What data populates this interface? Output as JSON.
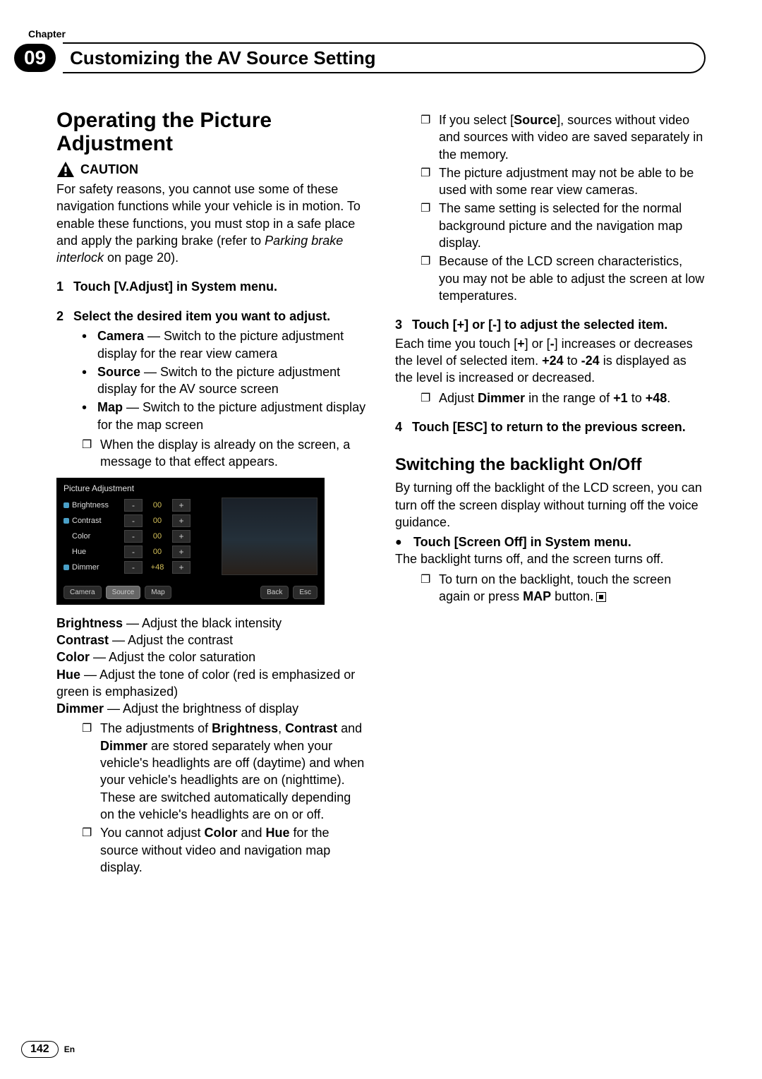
{
  "header": {
    "chapter_label": "Chapter",
    "chapter_number": "09",
    "chapter_title": "Customizing the AV Source Setting"
  },
  "left": {
    "heading": "Operating the Picture Adjustment",
    "caution_label": "CAUTION",
    "caution_text_1": "For safety reasons, you cannot use some of these navigation functions while your vehicle is in motion. To enable these functions, you must stop in a safe place and apply the parking brake (refer to ",
    "caution_text_italic": "Parking brake interlock",
    "caution_text_2": " on page 20).",
    "step1": "Touch [V.Adjust] in System menu.",
    "step2": "Select the desired item you want to adjust.",
    "bullets2": {
      "camera_label": "Camera",
      "camera_text": " — Switch to the picture adjustment display for the rear view camera",
      "source_label": "Source",
      "source_text": " — Switch to the picture adjustment display for the AV source screen",
      "map_label": "Map",
      "map_text": " — Switch to the picture adjustment display for the map screen"
    },
    "note2": "When the display is already on the screen, a message to that effect appears.",
    "screen": {
      "title": "Picture Adjustment",
      "rows": [
        {
          "dot": true,
          "label": "Brightness",
          "value": "00"
        },
        {
          "dot": true,
          "label": "Contrast",
          "value": "00"
        },
        {
          "dot": false,
          "label": "Color",
          "value": "00"
        },
        {
          "dot": false,
          "label": "Hue",
          "value": "00"
        },
        {
          "dot": true,
          "label": "Dimmer",
          "value": "+48"
        }
      ],
      "minus": "-",
      "plus": "+",
      "tabs": {
        "camera": "Camera",
        "source": "Source",
        "map": "Map",
        "back": "Back",
        "esc": "Esc"
      },
      "colors": {
        "bg": "#000000",
        "text": "#dddddd",
        "value": "#d4c05a",
        "dot": "#4aa0c8",
        "btn_bg": "#2a2a2a",
        "btn_border": "#444444"
      }
    },
    "defs": {
      "brightness_label": "Brightness",
      "brightness_text": " — Adjust the black intensity",
      "contrast_label": "Contrast",
      "contrast_text": " — Adjust the contrast",
      "color_label": "Color",
      "color_text": " — Adjust the color saturation",
      "hue_label": "Hue",
      "hue_text": " — Adjust the tone of color (red is emphasized or green is emphasized)",
      "dimmer_label": "Dimmer",
      "dimmer_text": " — Adjust the brightness of display"
    },
    "defs_notes": {
      "n1a": "The adjustments of ",
      "n1b": "Brightness",
      "n1c": ", ",
      "n1d": "Contrast",
      "n1e": " and ",
      "n1f": "Dimmer",
      "n1g": " are stored separately when your vehicle's headlights are off (daytime) and when your vehicle's headlights are on (nighttime). These are switched automatically depending on the vehicle's headlights are on or off.",
      "n2a": "You cannot adjust ",
      "n2b": "Color",
      "n2c": " and ",
      "n2d": "Hue",
      "n2e": " for the source without video and navigation map display."
    }
  },
  "right": {
    "notes_top": {
      "n1a": "If you select [",
      "n1b": "Source",
      "n1c": "], sources without video and sources with video are saved separately in the memory.",
      "n2": "The picture adjustment may not be able to be used with some rear view cameras.",
      "n3": "The same setting is selected for the normal background picture and the navigation map display.",
      "n4": "Because of the LCD screen characteristics, you may not be able to adjust the screen at low temperatures."
    },
    "step3": "Touch [+] or [-] to adjust the selected item.",
    "step3_text_a": "Each time you touch [",
    "step3_text_b": "+",
    "step3_text_c": "] or [",
    "step3_text_d": "-",
    "step3_text_e": "] increases or decreases the level of selected item. ",
    "step3_text_f": "+24",
    "step3_text_g": " to ",
    "step3_text_h": "-24",
    "step3_text_i": " is displayed as the level is increased or decreased.",
    "step3_note_a": "Adjust ",
    "step3_note_b": "Dimmer",
    "step3_note_c": " in the range of ",
    "step3_note_d": "+1",
    "step3_note_e": " to ",
    "step3_note_f": "+48",
    "step3_note_g": ".",
    "step4": "Touch [ESC] to return to the previous screen.",
    "h2": "Switching the backlight On/Off",
    "h2_text": "By turning off the backlight of the LCD screen, you can turn off the screen display without turning off the voice guidance.",
    "h2_bullet": "Touch [Screen Off] in System menu.",
    "h2_after": "The backlight turns off, and the screen turns off.",
    "h2_note_a": "To turn on the backlight, touch the screen again or press ",
    "h2_note_b": "MAP",
    "h2_note_c": " button."
  },
  "footer": {
    "page": "142",
    "lang": "En"
  }
}
